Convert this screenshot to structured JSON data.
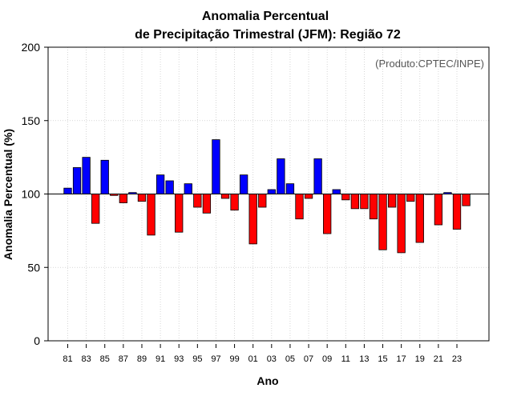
{
  "chart_data": {
    "type": "bar",
    "title": "Anomalia Percentual",
    "subtitle": "de Precipitação Trimestral (JFM): Região 72",
    "xlabel": "Ano",
    "ylabel": "Anomalia Percentual (%)",
    "annotation": "(Produto:CPTEC/INPE)",
    "ylim": [
      0,
      200
    ],
    "yticks": [
      "0",
      "50",
      "100",
      "150",
      "200"
    ],
    "ytick_values": [
      0,
      50,
      100,
      150,
      200
    ],
    "baseline": 100,
    "grid": true,
    "colors": {
      "above": "#0000ff",
      "below": "#ff0000",
      "outline": "#000000",
      "grid": "#cccccc"
    },
    "categories": [
      "81",
      "82",
      "83",
      "84",
      "85",
      "86",
      "87",
      "88",
      "89",
      "90",
      "91",
      "92",
      "93",
      "94",
      "95",
      "96",
      "97",
      "98",
      "99",
      "00",
      "01",
      "02",
      "03",
      "04",
      "05",
      "06",
      "07",
      "08",
      "09",
      "10",
      "11",
      "12",
      "13",
      "14",
      "15",
      "16",
      "17",
      "18",
      "19",
      "20",
      "21",
      "22",
      "23",
      "24"
    ],
    "xtick_labels": [
      "81",
      "83",
      "85",
      "87",
      "89",
      "91",
      "93",
      "95",
      "97",
      "99",
      "01",
      "03",
      "05",
      "07",
      "09",
      "11",
      "13",
      "15",
      "17",
      "19",
      "21",
      "23"
    ],
    "values": [
      104,
      118,
      125,
      80,
      123,
      99,
      94,
      101,
      95,
      72,
      113,
      109,
      74,
      107,
      91,
      87,
      137,
      97,
      89,
      113,
      66,
      91,
      103,
      124,
      107,
      83,
      97,
      124,
      73,
      103,
      96,
      90,
      90,
      83,
      62,
      91,
      60,
      95,
      67,
      100,
      79,
      101,
      76,
      92
    ]
  }
}
